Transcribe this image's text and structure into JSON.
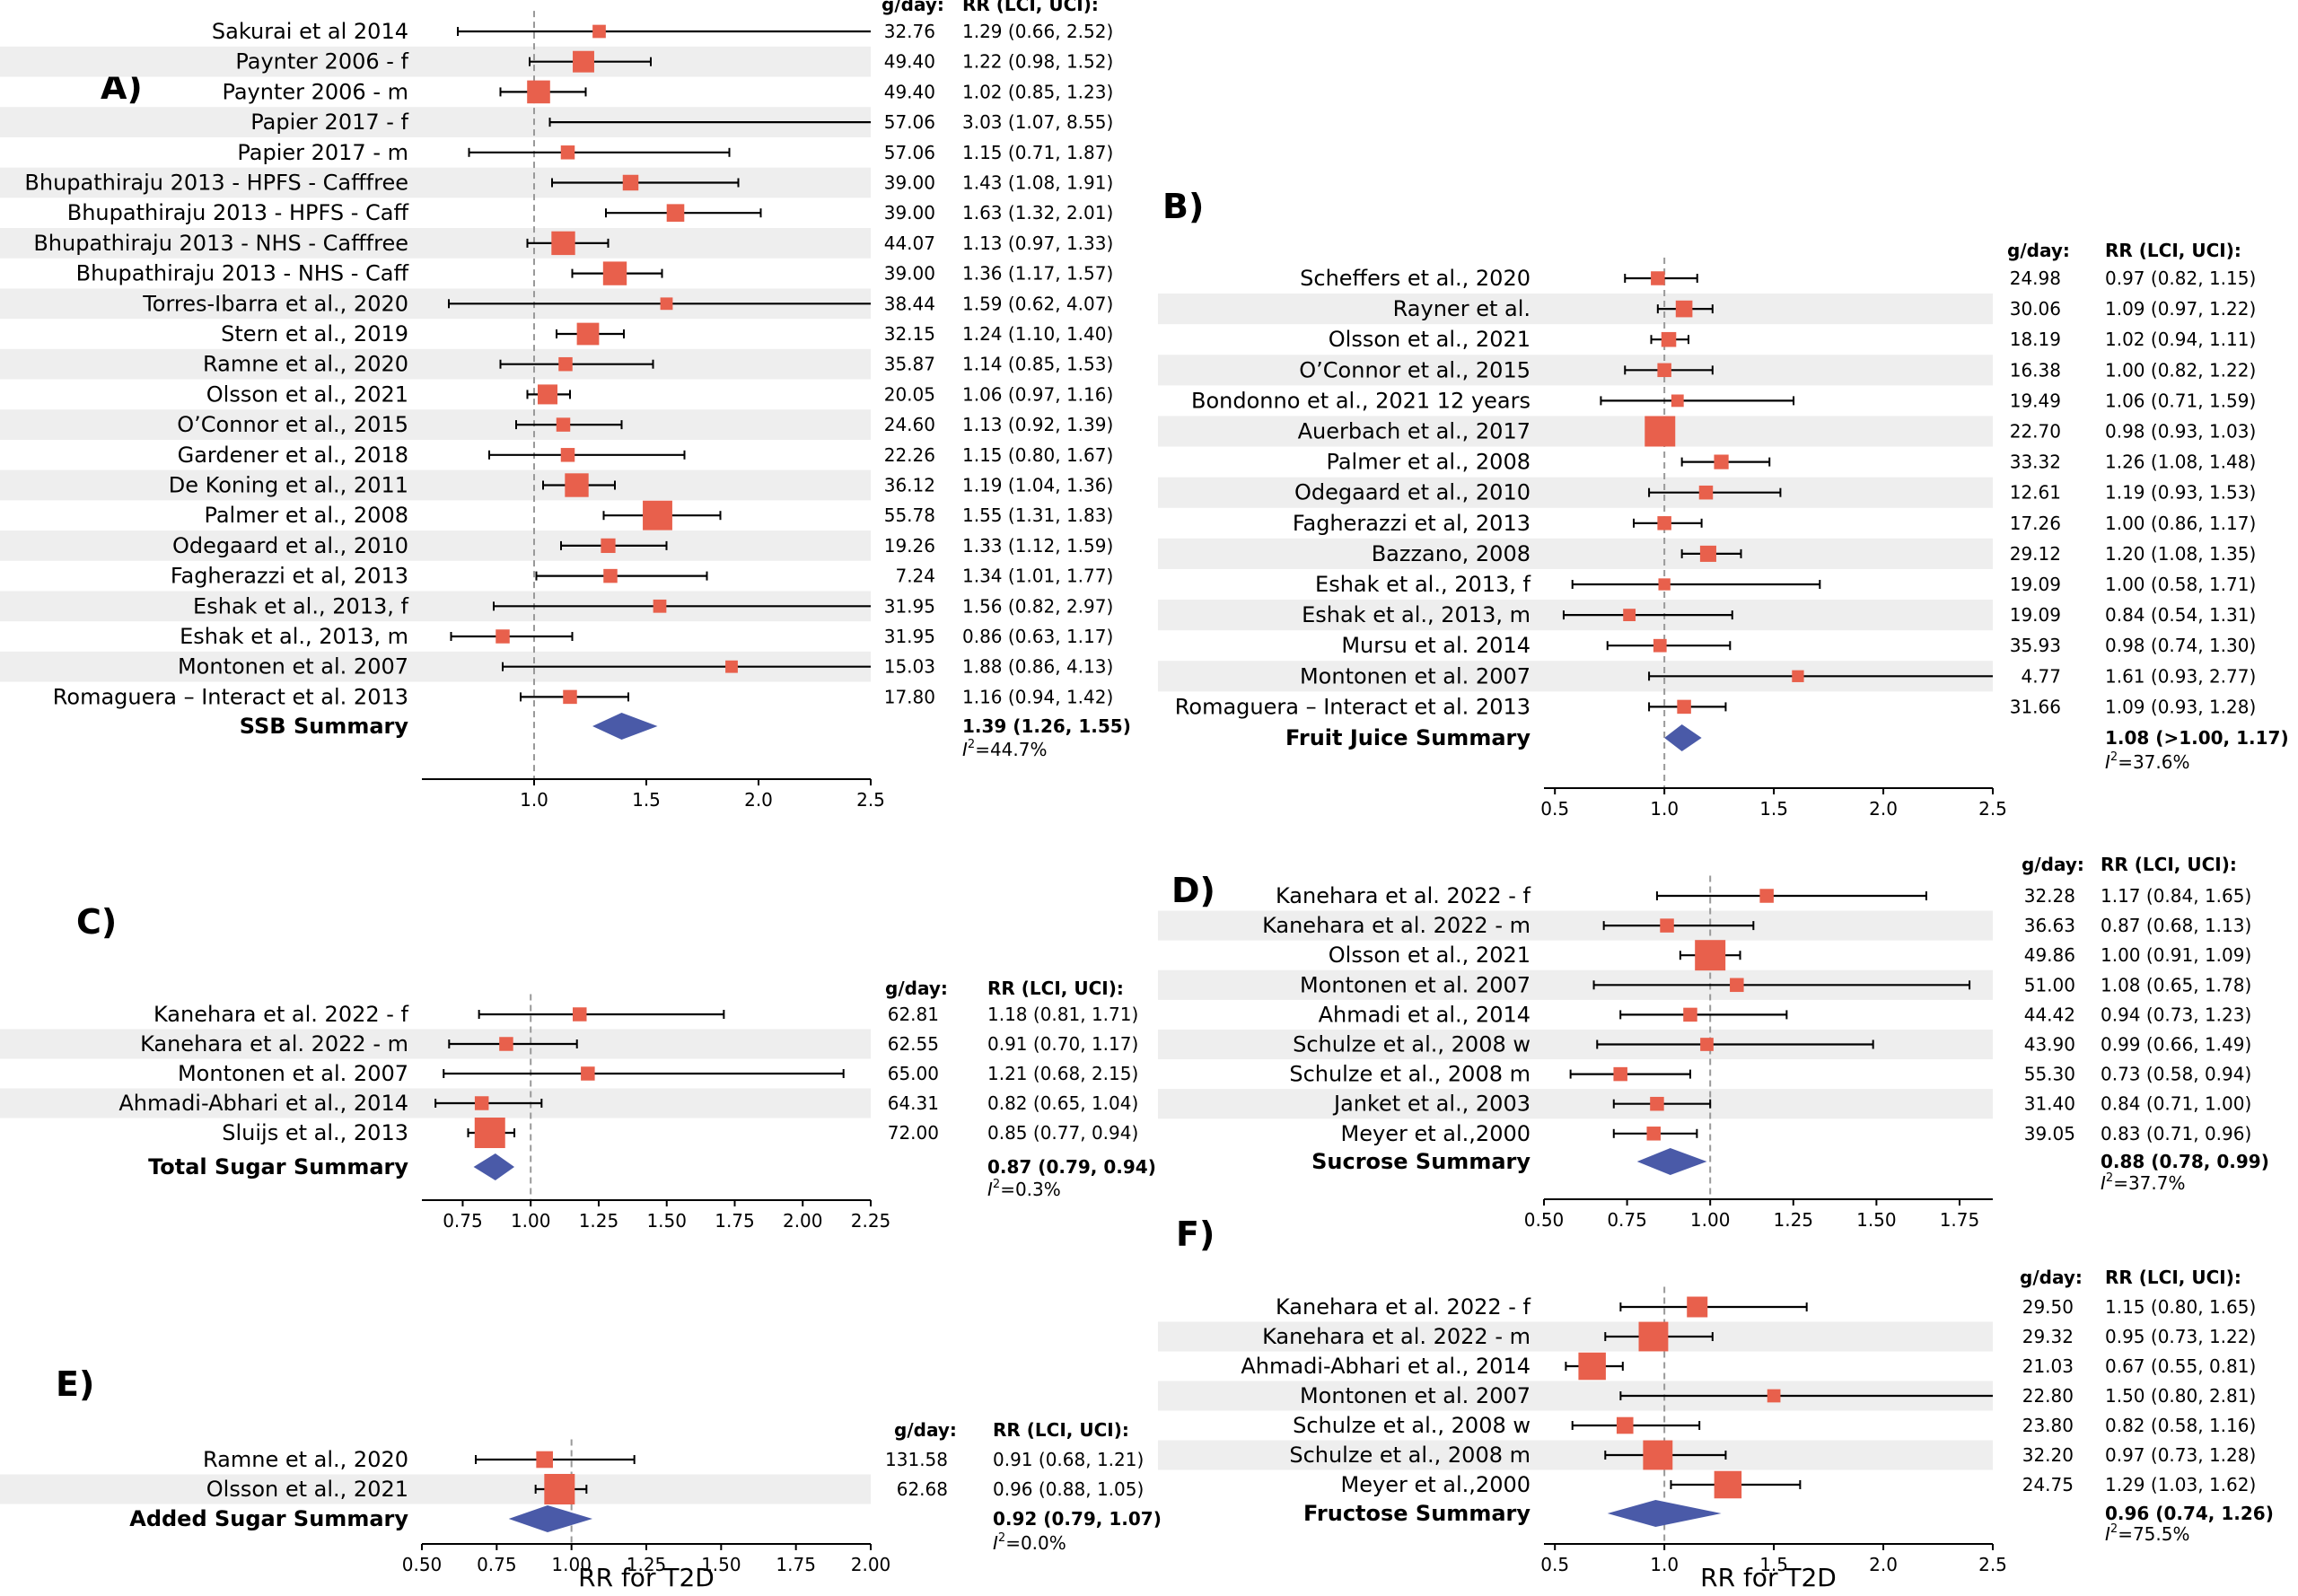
{
  "figure": {
    "xlabel": "RR for T2D"
  },
  "chart_data": [
    {
      "type": "forest",
      "panel": "A)",
      "col_headers": {
        "gday": "g/day:",
        "rr": "RR (LCI, UCI):"
      },
      "xlim": [
        0.5,
        2.5
      ],
      "ref_line": 1.0,
      "ticks": [
        1.0,
        1.5,
        2.0,
        2.5
      ],
      "tick_labels": [
        "1.0",
        "1.5",
        "2.0",
        "2.5"
      ],
      "studies": [
        {
          "label": "Sakurai et al 2014",
          "gday": "32.76",
          "rr_text": "1.29 (0.66, 2.52)",
          "rr": 1.29,
          "lci": 0.66,
          "uci": 2.52,
          "weight": 0.8
        },
        {
          "label": "Paynter 2006 - f",
          "gday": "49.40",
          "rr_text": "1.22 (0.98, 1.52)",
          "rr": 1.22,
          "lci": 0.98,
          "uci": 1.52,
          "weight": 4.5
        },
        {
          "label": "Paynter 2006 - m",
          "gday": "49.40",
          "rr_text": "1.02 (0.85, 1.23)",
          "rr": 1.02,
          "lci": 0.85,
          "uci": 1.23,
          "weight": 5.5
        },
        {
          "label": "Papier 2017 - f",
          "gday": "57.06",
          "rr_text": "3.03 (1.07, 8.55)",
          "rr": 3.03,
          "lci": 1.07,
          "uci": 8.55,
          "weight": 0.3
        },
        {
          "label": "Papier 2017 - m",
          "gday": "57.06",
          "rr_text": "1.15 (0.71, 1.87)",
          "rr": 1.15,
          "lci": 0.71,
          "uci": 1.87,
          "weight": 1.0
        },
        {
          "label": "Bhupathiraju 2013 - HPFS - Cafffree",
          "gday": "39.00",
          "rr_text": "1.43 (1.08, 1.91)",
          "rr": 1.43,
          "lci": 1.08,
          "uci": 1.91,
          "weight": 1.6
        },
        {
          "label": "Bhupathiraju 2013 - HPFS - Caff",
          "gday": "39.00",
          "rr_text": "1.63 (1.32, 2.01)",
          "rr": 1.63,
          "lci": 1.32,
          "uci": 2.01,
          "weight": 2.4
        },
        {
          "label": "Bhupathiraju 2013 - NHS - Cafffree",
          "gday": "44.07",
          "rr_text": "1.13 (0.97, 1.33)",
          "rr": 1.13,
          "lci": 0.97,
          "uci": 1.33,
          "weight": 6.0
        },
        {
          "label": "Bhupathiraju 2013 - NHS - Caff",
          "gday": "39.00",
          "rr_text": "1.36 (1.17, 1.57)",
          "rr": 1.36,
          "lci": 1.17,
          "uci": 1.57,
          "weight": 6.0
        },
        {
          "label": "Torres-Ibarra et al., 2020",
          "gday": "38.44",
          "rr_text": "1.59 (0.62, 4.07)",
          "rr": 1.59,
          "lci": 0.62,
          "uci": 4.07,
          "weight": 0.6
        },
        {
          "label": "Stern et al., 2019",
          "gday": "32.15",
          "rr_text": "1.24 (1.10, 1.40)",
          "rr": 1.24,
          "lci": 1.1,
          "uci": 1.4,
          "weight": 5.0
        },
        {
          "label": "Ramne et al., 2020",
          "gday": "35.87",
          "rr_text": "1.14 (0.85, 1.53)",
          "rr": 1.14,
          "lci": 0.85,
          "uci": 1.53,
          "weight": 1.0
        },
        {
          "label": "Olsson et al., 2021",
          "gday": "20.05",
          "rr_text": "1.06 (0.97, 1.16)",
          "rr": 1.06,
          "lci": 0.97,
          "uci": 1.16,
          "weight": 3.5
        },
        {
          "label": "O’Connor et al., 2015",
          "gday": "24.60",
          "rr_text": "1.13 (0.92, 1.39)",
          "rr": 1.13,
          "lci": 0.92,
          "uci": 1.39,
          "weight": 1.0
        },
        {
          "label": "Gardener et al., 2018",
          "gday": "22.26",
          "rr_text": "1.15 (0.80, 1.67)",
          "rr": 1.15,
          "lci": 0.8,
          "uci": 1.67,
          "weight": 1.0
        },
        {
          "label": "De Koning et al., 2011",
          "gday": "36.12",
          "rr_text": "1.19 (1.04, 1.36)",
          "rr": 1.19,
          "lci": 1.04,
          "uci": 1.36,
          "weight": 6.0
        },
        {
          "label": "Palmer et al., 2008",
          "gday": "55.78",
          "rr_text": "1.55 (1.31, 1.83)",
          "rr": 1.55,
          "lci": 1.31,
          "uci": 1.83,
          "weight": 11.0
        },
        {
          "label": "Odegaard et al., 2010",
          "gday": "19.26",
          "rr_text": "1.33 (1.12, 1.59)",
          "rr": 1.33,
          "lci": 1.12,
          "uci": 1.59,
          "weight": 1.2
        },
        {
          "label": "Fagherazzi et al, 2013",
          "gday": "7.24",
          "rr_text": "1.34 (1.01, 1.77)",
          "rr": 1.34,
          "lci": 1.01,
          "uci": 1.77,
          "weight": 1.0
        },
        {
          "label": "Eshak et al., 2013, f",
          "gday": "31.95",
          "rr_text": "1.56 (0.82, 2.97)",
          "rr": 1.56,
          "lci": 0.82,
          "uci": 2.97,
          "weight": 0.8
        },
        {
          "label": "Eshak et al., 2013, m",
          "gday": "31.95",
          "rr_text": "0.86 (0.63, 1.17)",
          "rr": 0.86,
          "lci": 0.63,
          "uci": 1.17,
          "weight": 1.0
        },
        {
          "label": "Montonen et al. 2007",
          "gday": "15.03",
          "rr_text": "1.88 (0.86, 4.13)",
          "rr": 1.88,
          "lci": 0.86,
          "uci": 4.13,
          "weight": 0.6
        },
        {
          "label": "Romaguera – Interact et al. 2013",
          "gday": "17.80",
          "rr_text": "1.16 (0.94, 1.42)",
          "rr": 1.16,
          "lci": 0.94,
          "uci": 1.42,
          "weight": 1.0
        }
      ],
      "summary": {
        "label": "SSB Summary",
        "rr_text": "1.39 (1.26, 1.55)",
        "rr": 1.39,
        "lci": 1.26,
        "uci": 1.55,
        "i2": "=44.7%"
      }
    },
    {
      "type": "forest",
      "panel": "B)",
      "col_headers": {
        "gday": "g/day:",
        "rr": "RR (LCI, UCI):"
      },
      "xlim": [
        0.45,
        2.5
      ],
      "ref_line": 1.0,
      "ticks": [
        0.5,
        1.0,
        1.5,
        2.0,
        2.5
      ],
      "tick_labels": [
        "0.5",
        "1.0",
        "1.5",
        "2.0",
        "2.5"
      ],
      "studies": [
        {
          "label": "Scheffers et al., 2020",
          "gday": "24.98",
          "rr_text": "0.97 (0.82, 1.15)",
          "rr": 0.97,
          "lci": 0.82,
          "uci": 1.15,
          "weight": 1.0
        },
        {
          "label": "Rayner et al.",
          "gday": "30.06",
          "rr_text": "1.09 (0.97, 1.22)",
          "rr": 1.09,
          "lci": 0.97,
          "uci": 1.22,
          "weight": 2.0
        },
        {
          "label": "Olsson et al., 2021",
          "gday": "18.19",
          "rr_text": "1.02 (0.94, 1.11)",
          "rr": 1.02,
          "lci": 0.94,
          "uci": 1.11,
          "weight": 1.3
        },
        {
          "label": "O’Connor et al., 2015",
          "gday": "16.38",
          "rr_text": "1.00 (0.82, 1.22)",
          "rr": 1.0,
          "lci": 0.82,
          "uci": 1.22,
          "weight": 1.0
        },
        {
          "label": "Bondonno et al., 2021 12 years",
          "gday": "19.49",
          "rr_text": "1.06 (0.71, 1.59)",
          "rr": 1.06,
          "lci": 0.71,
          "uci": 1.59,
          "weight": 0.6
        },
        {
          "label": "Auerbach et al., 2017",
          "gday": "22.70",
          "rr_text": "0.98 (0.93, 1.03)",
          "rr": 0.98,
          "lci": 0.93,
          "uci": 1.03,
          "weight": 12.0
        },
        {
          "label": "Palmer et al., 2008",
          "gday": "33.32",
          "rr_text": "1.26 (1.08, 1.48)",
          "rr": 1.26,
          "lci": 1.08,
          "uci": 1.48,
          "weight": 1.2
        },
        {
          "label": "Odegaard et al., 2010",
          "gday": "12.61",
          "rr_text": "1.19 (0.93, 1.53)",
          "rr": 1.19,
          "lci": 0.93,
          "uci": 1.53,
          "weight": 1.0
        },
        {
          "label": "Fagherazzi et al, 2013",
          "gday": "17.26",
          "rr_text": "1.00 (0.86, 1.17)",
          "rr": 1.0,
          "lci": 0.86,
          "uci": 1.17,
          "weight": 1.0
        },
        {
          "label": "Bazzano, 2008",
          "gday": "29.12",
          "rr_text": "1.20 (1.08, 1.35)",
          "rr": 1.2,
          "lci": 1.08,
          "uci": 1.35,
          "weight": 1.8
        },
        {
          "label": "Eshak et al., 2013, f",
          "gday": "19.09",
          "rr_text": "1.00 (0.58, 1.71)",
          "rr": 1.0,
          "lci": 0.58,
          "uci": 1.71,
          "weight": 0.5
        },
        {
          "label": "Eshak et al., 2013, m",
          "gday": "19.09",
          "rr_text": "0.84 (0.54, 1.31)",
          "rr": 0.84,
          "lci": 0.54,
          "uci": 1.31,
          "weight": 0.6
        },
        {
          "label": "Mursu et al. 2014",
          "gday": "35.93",
          "rr_text": "0.98 (0.74, 1.30)",
          "rr": 0.98,
          "lci": 0.74,
          "uci": 1.3,
          "weight": 0.8
        },
        {
          "label": "Montonen et al. 2007",
          "gday": "4.77",
          "rr_text": "1.61 (0.93, 2.77)",
          "rr": 1.61,
          "lci": 0.93,
          "uci": 2.77,
          "weight": 0.5
        },
        {
          "label": "Romaguera – Interact et al. 2013",
          "gday": "31.66",
          "rr_text": "1.09 (0.93, 1.28)",
          "rr": 1.09,
          "lci": 0.93,
          "uci": 1.28,
          "weight": 1.0
        }
      ],
      "summary": {
        "label": "Fruit Juice Summary",
        "rr_text": "1.08 (>1.00, 1.17)",
        "rr": 1.08,
        "lci": 1.0,
        "uci": 1.17,
        "i2": "=37.6%"
      }
    },
    {
      "type": "forest",
      "panel": "C)",
      "col_headers": {
        "gday": "g/day:",
        "rr": "RR (LCI, UCI):"
      },
      "xlim": [
        0.6,
        2.25
      ],
      "ref_line": 1.0,
      "ticks": [
        0.75,
        1.0,
        1.25,
        1.5,
        1.75,
        2.0,
        2.25
      ],
      "tick_labels": [
        "0.75",
        "1.00",
        "1.25",
        "1.50",
        "1.75",
        "2.00",
        "2.25"
      ],
      "studies": [
        {
          "label": "Kanehara et al. 2022 - f",
          "gday": "62.81",
          "rr_text": "1.18 (0.81, 1.71)",
          "rr": 1.18,
          "lci": 0.81,
          "uci": 1.71,
          "weight": 1.0
        },
        {
          "label": "Kanehara et al. 2022 - m",
          "gday": "62.55",
          "rr_text": "0.91 (0.70, 1.17)",
          "rr": 0.91,
          "lci": 0.7,
          "uci": 1.17,
          "weight": 1.0
        },
        {
          "label": "Montonen et al. 2007",
          "gday": "65.00",
          "rr_text": "1.21 (0.68, 2.15)",
          "rr": 1.21,
          "lci": 0.68,
          "uci": 2.15,
          "weight": 1.0
        },
        {
          "label": "Ahmadi-Abhari et al., 2014",
          "gday": "64.31",
          "rr_text": "0.82 (0.65, 1.04)",
          "rr": 0.82,
          "lci": 0.65,
          "uci": 1.04,
          "weight": 1.0
        },
        {
          "label": "Sluijs et al., 2013",
          "gday": "72.00",
          "rr_text": "0.85 (0.77, 0.94)",
          "rr": 0.85,
          "lci": 0.77,
          "uci": 0.94,
          "weight": 12.0
        }
      ],
      "summary": {
        "label": "Total Sugar Summary",
        "rr_text": "0.87 (0.79, 0.94)",
        "rr": 0.87,
        "lci": 0.79,
        "uci": 0.94,
        "i2": "=0.3%"
      }
    },
    {
      "type": "forest",
      "panel": "D)",
      "col_headers": {
        "gday": "g/day:",
        "rr": "RR (LCI, UCI):"
      },
      "xlim": [
        0.5,
        1.85
      ],
      "ref_line": 1.0,
      "ticks": [
        0.5,
        0.75,
        1.0,
        1.25,
        1.5,
        1.75
      ],
      "tick_labels": [
        "0.50",
        "0.75",
        "1.00",
        "1.25",
        "1.50",
        "1.75"
      ],
      "studies": [
        {
          "label": "Kanehara et al. 2022 - f",
          "gday": "32.28",
          "rr_text": "1.17 (0.84, 1.65)",
          "rr": 1.17,
          "lci": 0.84,
          "uci": 1.65,
          "weight": 1.0
        },
        {
          "label": "Kanehara et al. 2022 - m",
          "gday": "36.63",
          "rr_text": "0.87 (0.68, 1.13)",
          "rr": 0.87,
          "lci": 0.68,
          "uci": 1.13,
          "weight": 1.0
        },
        {
          "label": "Olsson et al., 2021",
          "gday": "49.86",
          "rr_text": "1.00 (0.91, 1.09)",
          "rr": 1.0,
          "lci": 0.91,
          "uci": 1.09,
          "weight": 12.0
        },
        {
          "label": "Montonen et al. 2007",
          "gday": "51.00",
          "rr_text": "1.08 (0.65, 1.78)",
          "rr": 1.08,
          "lci": 0.65,
          "uci": 1.78,
          "weight": 1.0
        },
        {
          "label": "Ahmadi et al., 2014",
          "gday": "44.42",
          "rr_text": "0.94 (0.73, 1.23)",
          "rr": 0.94,
          "lci": 0.73,
          "uci": 1.23,
          "weight": 1.0
        },
        {
          "label": "Schulze et al., 2008 w",
          "gday": "43.90",
          "rr_text": "0.99 (0.66, 1.49)",
          "rr": 0.99,
          "lci": 0.66,
          "uci": 1.49,
          "weight": 0.8
        },
        {
          "label": "Schulze et al., 2008 m",
          "gday": "55.30",
          "rr_text": "0.73 (0.58, 0.94)",
          "rr": 0.73,
          "lci": 0.58,
          "uci": 0.94,
          "weight": 1.0
        },
        {
          "label": "Janket et al., 2003",
          "gday": "31.40",
          "rr_text": "0.84 (0.71, 1.00)",
          "rr": 0.84,
          "lci": 0.71,
          "uci": 1.0,
          "weight": 1.0
        },
        {
          "label": "Meyer et al.,2000",
          "gday": "39.05",
          "rr_text": "0.83 (0.71, 0.96)",
          "rr": 0.83,
          "lci": 0.71,
          "uci": 0.96,
          "weight": 1.0
        }
      ],
      "summary": {
        "label": "Sucrose Summary",
        "rr_text": "0.88 (0.78, 0.99)",
        "rr": 0.88,
        "lci": 0.78,
        "uci": 0.99,
        "i2": "=37.7%"
      }
    },
    {
      "type": "forest",
      "panel": "E)",
      "col_headers": {
        "gday": "g/day:",
        "rr": "RR (LCI, UCI):"
      },
      "xlim": [
        0.5,
        2.0
      ],
      "ref_line": 1.0,
      "ticks": [
        0.5,
        0.75,
        1.0,
        1.25,
        1.5,
        1.75,
        2.0
      ],
      "tick_labels": [
        "0.50",
        "0.75",
        "1.00",
        "1.25",
        "1.50",
        "1.75",
        "2.00"
      ],
      "studies": [
        {
          "label": "Ramne et al., 2020",
          "gday": "131.58",
          "rr_text": "0.91 (0.68, 1.21)",
          "rr": 0.91,
          "lci": 0.68,
          "uci": 1.21,
          "weight": 2.0
        },
        {
          "label": "Olsson et al., 2021",
          "gday": "62.68",
          "rr_text": "0.96 (0.88, 1.05)",
          "rr": 0.96,
          "lci": 0.88,
          "uci": 1.05,
          "weight": 12.0
        }
      ],
      "summary": {
        "label": "Added Sugar Summary",
        "rr_text": "0.92 (0.79, 1.07)",
        "rr": 0.92,
        "lci": 0.79,
        "uci": 1.07,
        "i2": "=0.0%"
      },
      "xlabel": "RR for T2D"
    },
    {
      "type": "forest",
      "panel": "F)",
      "col_headers": {
        "gday": "g/day:",
        "rr": "RR (LCI, UCI):"
      },
      "xlim": [
        0.45,
        2.5
      ],
      "ref_line": 1.0,
      "ticks": [
        0.5,
        1.0,
        1.5,
        2.0,
        2.5
      ],
      "tick_labels": [
        "0.5",
        "1.0",
        "1.5",
        "2.0",
        "2.5"
      ],
      "studies": [
        {
          "label": "Kanehara et al. 2022 - f",
          "gday": "29.50",
          "rr_text": "1.15 (0.80, 1.65)",
          "rr": 1.15,
          "lci": 0.8,
          "uci": 1.65,
          "weight": 4.0
        },
        {
          "label": "Kanehara et al. 2022 - m",
          "gday": "29.32",
          "rr_text": "0.95 (0.73, 1.22)",
          "rr": 0.95,
          "lci": 0.73,
          "uci": 1.22,
          "weight": 11.0
        },
        {
          "label": "Ahmadi-Abhari et al., 2014",
          "gday": "21.03",
          "rr_text": "0.67 (0.55, 0.81)",
          "rr": 0.67,
          "lci": 0.55,
          "uci": 0.81,
          "weight": 9.0
        },
        {
          "label": "Montonen et al. 2007",
          "gday": "22.80",
          "rr_text": "1.50 (0.80, 2.81)",
          "rr": 1.5,
          "lci": 0.8,
          "uci": 2.81,
          "weight": 0.8
        },
        {
          "label": "Schulze et al., 2008 w",
          "gday": "23.80",
          "rr_text": "0.82 (0.58, 1.16)",
          "rr": 0.82,
          "lci": 0.58,
          "uci": 1.16,
          "weight": 2.0
        },
        {
          "label": "Schulze et al., 2008 m",
          "gday": "32.20",
          "rr_text": "0.97 (0.73, 1.28)",
          "rr": 0.97,
          "lci": 0.73,
          "uci": 1.28,
          "weight": 11.0
        },
        {
          "label": "Meyer et al.,2000",
          "gday": "24.75",
          "rr_text": "1.29 (1.03, 1.62)",
          "rr": 1.29,
          "lci": 1.03,
          "uci": 1.62,
          "weight": 9.0
        }
      ],
      "summary": {
        "label": "Fructose Summary",
        "rr_text": "0.96 (0.74, 1.26)",
        "rr": 0.96,
        "lci": 0.74,
        "uci": 1.26,
        "i2": "=75.5%"
      },
      "xlabel": "RR for T2D"
    }
  ],
  "colors": {
    "marker": "#e8604c",
    "diamond": "#4a5aa8",
    "shade": "#eeeeee",
    "ref": "#999999",
    "line": "#000000"
  }
}
